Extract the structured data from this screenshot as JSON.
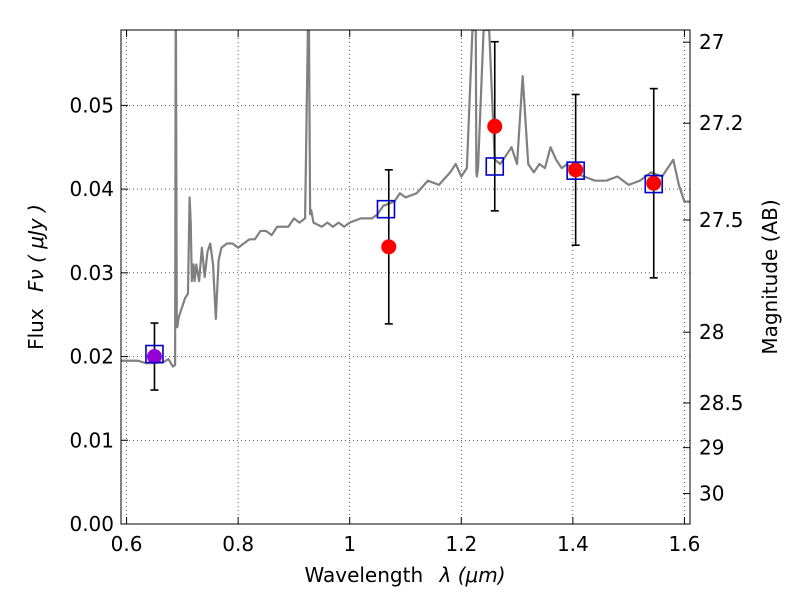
{
  "chart_data": {
    "type": "scatter",
    "title": "",
    "xlabel_text": "Wavelength",
    "xlabel_math": "λ (μm)",
    "ylabel_text": "Flux",
    "ylabel_math": "Fν ( μJy )",
    "y2label": "Magnitude (AB)",
    "xlim": [
      0.59,
      1.61
    ],
    "ylim": [
      0.0,
      0.059
    ],
    "grid": true,
    "x_ticks": [
      0.6,
      0.8,
      1.0,
      1.2,
      1.4,
      1.6
    ],
    "x_tick_labels": [
      "0.6",
      "0.8",
      "1",
      "1.2",
      "1.4",
      "1.6"
    ],
    "y_ticks": [
      0.0,
      0.01,
      0.02,
      0.03,
      0.04,
      0.05
    ],
    "y_tick_labels": [
      "0.00",
      "0.01",
      "0.02",
      "0.03",
      "0.04",
      "0.05"
    ],
    "y2_ticks": [
      27.0,
      27.2,
      27.5,
      28.0,
      28.5,
      29.0,
      30.0
    ],
    "y2_tick_labels": [
      "27",
      "27.2",
      "27.5",
      "28",
      "28.5",
      "29",
      "30"
    ],
    "observed": {
      "x": [
        0.65,
        1.07,
        1.26,
        1.405,
        1.545
      ],
      "y": [
        0.02,
        0.0331,
        0.0475,
        0.0423,
        0.0407
      ],
      "yerr": [
        0.004,
        0.0092,
        0.0101,
        0.009,
        0.0113
      ],
      "colors": [
        "#9400d3",
        "#ff0000",
        "#ff0000",
        "#ff0000",
        "#ff0000"
      ]
    },
    "model_points": {
      "x": [
        0.65,
        1.065,
        1.26,
        1.405,
        1.545
      ],
      "y": [
        0.0203,
        0.0376,
        0.0427,
        0.0422,
        0.0406
      ],
      "color": "#0000cc"
    },
    "spectrum": {
      "color": "#808080",
      "x": [
        0.59,
        0.62,
        0.635,
        0.665,
        0.675,
        0.683,
        0.687,
        0.688,
        0.6885,
        0.69,
        0.691,
        0.692,
        0.693,
        0.695,
        0.7,
        0.705,
        0.71,
        0.713,
        0.715,
        0.717,
        0.72,
        0.722,
        0.725,
        0.73,
        0.735,
        0.74,
        0.745,
        0.75,
        0.755,
        0.76,
        0.765,
        0.77,
        0.78,
        0.79,
        0.8,
        0.81,
        0.82,
        0.83,
        0.84,
        0.85,
        0.86,
        0.87,
        0.88,
        0.89,
        0.9,
        0.91,
        0.92,
        0.925,
        0.927,
        0.929,
        0.931,
        0.935,
        0.95,
        0.96,
        0.97,
        0.98,
        0.99,
        1.0,
        1.02,
        1.04,
        1.05,
        1.06,
        1.08,
        1.09,
        1.1,
        1.12,
        1.14,
        1.16,
        1.18,
        1.19,
        1.2,
        1.21,
        1.22,
        1.226,
        1.227,
        1.228,
        1.23,
        1.24,
        1.245,
        1.25,
        1.26,
        1.27,
        1.28,
        1.29,
        1.3,
        1.31,
        1.32,
        1.33,
        1.34,
        1.35,
        1.36,
        1.37,
        1.38,
        1.39,
        1.4,
        1.42,
        1.44,
        1.46,
        1.48,
        1.5,
        1.52,
        1.54,
        1.56,
        1.58,
        1.59,
        1.6,
        1.61
      ],
      "y": [
        0.0195,
        0.0195,
        0.0192,
        0.0193,
        0.0197,
        0.0188,
        0.019,
        0.059,
        0.059,
        0.024,
        0.0235,
        0.024,
        0.0245,
        0.025,
        0.026,
        0.027,
        0.0275,
        0.039,
        0.036,
        0.029,
        0.031,
        0.029,
        0.031,
        0.029,
        0.033,
        0.0295,
        0.0325,
        0.0335,
        0.031,
        0.0245,
        0.0315,
        0.033,
        0.0335,
        0.0335,
        0.033,
        0.0335,
        0.034,
        0.034,
        0.035,
        0.035,
        0.0345,
        0.0355,
        0.0355,
        0.0355,
        0.0365,
        0.036,
        0.0365,
        0.059,
        0.059,
        0.037,
        0.0375,
        0.036,
        0.0355,
        0.036,
        0.0355,
        0.036,
        0.0355,
        0.036,
        0.0365,
        0.0365,
        0.037,
        0.038,
        0.0385,
        0.0395,
        0.039,
        0.0395,
        0.041,
        0.0405,
        0.042,
        0.043,
        0.0415,
        0.0425,
        0.059,
        0.059,
        0.042,
        0.0415,
        0.0425,
        0.059,
        0.059,
        0.059,
        0.0435,
        0.043,
        0.044,
        0.045,
        0.043,
        0.0535,
        0.043,
        0.042,
        0.043,
        0.0425,
        0.045,
        0.0435,
        0.0425,
        0.043,
        0.042,
        0.0415,
        0.041,
        0.041,
        0.0415,
        0.0405,
        0.041,
        0.042,
        0.0415,
        0.0435,
        0.0405,
        0.0385,
        0.0385
      ]
    }
  }
}
